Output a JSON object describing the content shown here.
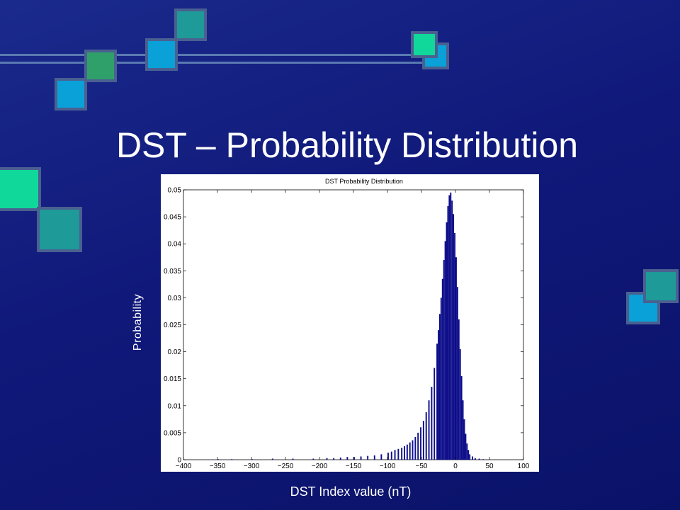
{
  "slide": {
    "title": "DST – Probability Distribution"
  },
  "colors": {
    "background": "#10197a",
    "bar_fill": "#0d0d8a",
    "square_teal": "#1e9a98",
    "square_blue": "#0aa0d8",
    "square_green": "#2fa06a",
    "square_mint": "#10d89a",
    "square_border": "#4a6090"
  },
  "decor_icons": [
    "square-icon",
    "connector-line-icon"
  ],
  "chart_data": {
    "type": "bar",
    "title": "DST Probability Distribution",
    "xlabel": "DST Index value (nT)",
    "ylabel": "Probability",
    "xlim": [
      -400,
      100
    ],
    "ylim": [
      0,
      0.05
    ],
    "xticks": [
      -400,
      -350,
      -300,
      -250,
      -200,
      -150,
      -100,
      -50,
      0,
      50,
      100
    ],
    "yticks": [
      0,
      0.005,
      0.01,
      0.015,
      0.02,
      0.025,
      0.03,
      0.035,
      0.04,
      0.045,
      0.05
    ],
    "xtick_labels": [
      "−400",
      "−350",
      "−300",
      "−250",
      "−200",
      "−150",
      "−100",
      "−50",
      "0",
      "50",
      "100"
    ],
    "ytick_labels": [
      "0",
      "0.005",
      "0.01",
      "0.015",
      "0.02",
      "0.025",
      "0.03",
      "0.035",
      "0.04",
      "0.045",
      "0.05"
    ],
    "bin_width": 2,
    "bins": [
      {
        "x": -350,
        "y": 0.0001
      },
      {
        "x": -330,
        "y": 0.0001
      },
      {
        "x": -300,
        "y": 0.0001
      },
      {
        "x": -270,
        "y": 0.0002
      },
      {
        "x": -240,
        "y": 0.0002
      },
      {
        "x": -210,
        "y": 0.0002
      },
      {
        "x": -190,
        "y": 0.0003
      },
      {
        "x": -180,
        "y": 0.0003
      },
      {
        "x": -170,
        "y": 0.0004
      },
      {
        "x": -160,
        "y": 0.0005
      },
      {
        "x": -150,
        "y": 0.0005
      },
      {
        "x": -140,
        "y": 0.0006
      },
      {
        "x": -130,
        "y": 0.0007
      },
      {
        "x": -120,
        "y": 0.0008
      },
      {
        "x": -110,
        "y": 0.001
      },
      {
        "x": -100,
        "y": 0.0013
      },
      {
        "x": -95,
        "y": 0.0015
      },
      {
        "x": -90,
        "y": 0.0018
      },
      {
        "x": -85,
        "y": 0.002
      },
      {
        "x": -80,
        "y": 0.0022
      },
      {
        "x": -76,
        "y": 0.0025
      },
      {
        "x": -72,
        "y": 0.0028
      },
      {
        "x": -68,
        "y": 0.0032
      },
      {
        "x": -64,
        "y": 0.0036
      },
      {
        "x": -60,
        "y": 0.0042
      },
      {
        "x": -56,
        "y": 0.005
      },
      {
        "x": -52,
        "y": 0.006
      },
      {
        "x": -48,
        "y": 0.0072
      },
      {
        "x": -44,
        "y": 0.0088
      },
      {
        "x": -40,
        "y": 0.011
      },
      {
        "x": -36,
        "y": 0.0135
      },
      {
        "x": -32,
        "y": 0.017
      },
      {
        "x": -28,
        "y": 0.0215
      },
      {
        "x": -26,
        "y": 0.024
      },
      {
        "x": -24,
        "y": 0.027
      },
      {
        "x": -22,
        "y": 0.03
      },
      {
        "x": -20,
        "y": 0.0335
      },
      {
        "x": -18,
        "y": 0.037
      },
      {
        "x": -16,
        "y": 0.0405
      },
      {
        "x": -14,
        "y": 0.044
      },
      {
        "x": -12,
        "y": 0.047
      },
      {
        "x": -10,
        "y": 0.049
      },
      {
        "x": -8,
        "y": 0.0495
      },
      {
        "x": -6,
        "y": 0.048
      },
      {
        "x": -4,
        "y": 0.0455
      },
      {
        "x": -2,
        "y": 0.042
      },
      {
        "x": 0,
        "y": 0.0375
      },
      {
        "x": 2,
        "y": 0.032
      },
      {
        "x": 4,
        "y": 0.026
      },
      {
        "x": 6,
        "y": 0.0205
      },
      {
        "x": 8,
        "y": 0.0155
      },
      {
        "x": 10,
        "y": 0.011
      },
      {
        "x": 12,
        "y": 0.0075
      },
      {
        "x": 14,
        "y": 0.0048
      },
      {
        "x": 16,
        "y": 0.003
      },
      {
        "x": 18,
        "y": 0.0018
      },
      {
        "x": 20,
        "y": 0.001
      },
      {
        "x": 24,
        "y": 0.0006
      },
      {
        "x": 28,
        "y": 0.0003
      },
      {
        "x": 34,
        "y": 0.0002
      },
      {
        "x": 40,
        "y": 0.0001
      }
    ],
    "grid": false,
    "legend": "none"
  }
}
